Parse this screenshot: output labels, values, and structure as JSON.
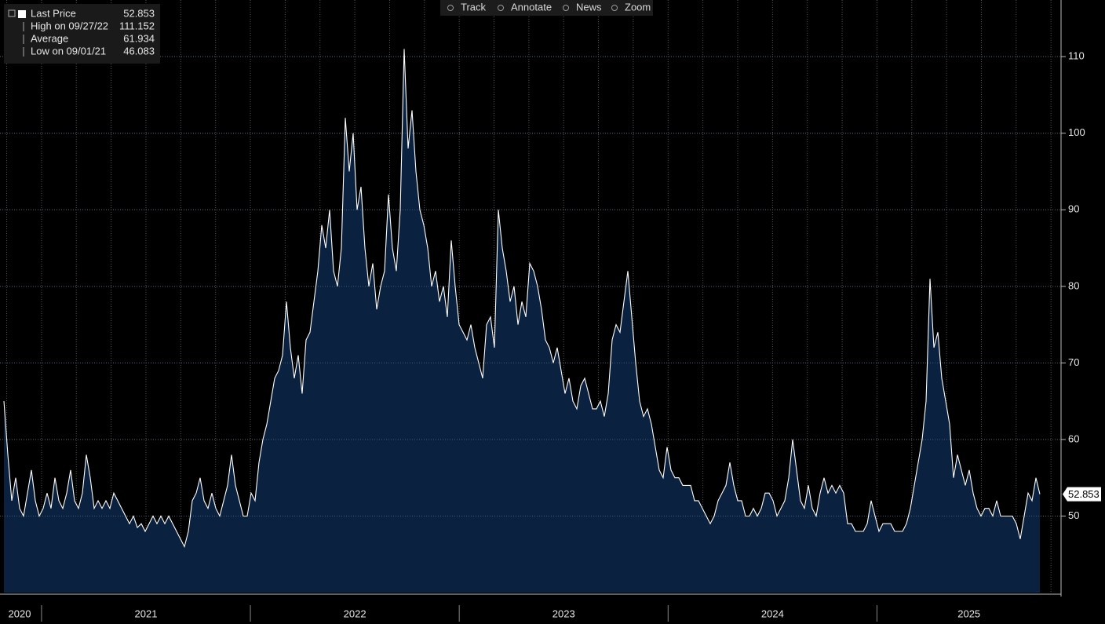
{
  "toolbar": [
    "Track",
    "Annotate",
    "News",
    "Zoom"
  ],
  "chart_data": {
    "type": "area",
    "legend": [
      {
        "label": "Last Price",
        "value": 52.853
      },
      {
        "label": "High on 09/27/22",
        "value": 111.152
      },
      {
        "label": "Average",
        "value": 61.934
      },
      {
        "label": "Low on 09/01/21",
        "value": 46.083
      }
    ],
    "series": [
      {
        "name": "Last Price",
        "color": "#ffffff",
        "fill": "#0a2140",
        "values": [
          65,
          58,
          52,
          55,
          51,
          50,
          53,
          56,
          52,
          50,
          51,
          53,
          51,
          55,
          52,
          51,
          53,
          56,
          52,
          51,
          53,
          58,
          55,
          51,
          52,
          51,
          52,
          51,
          53,
          52,
          51,
          50,
          49,
          50,
          48.5,
          49,
          48,
          49,
          50,
          49,
          50,
          49,
          50,
          49,
          48,
          47,
          46,
          48,
          52,
          53,
          55,
          52,
          51,
          53,
          51,
          50,
          52,
          54,
          58,
          54,
          52,
          50,
          50,
          53,
          52,
          57,
          60,
          62,
          65,
          68,
          69,
          71,
          78,
          72,
          68,
          71,
          66,
          73,
          74,
          78,
          82,
          88,
          85,
          90,
          82,
          80,
          85,
          102,
          95,
          100,
          90,
          93,
          85,
          80,
          83,
          77,
          80,
          82,
          92,
          85,
          82,
          90,
          111,
          98,
          103,
          95,
          90,
          88,
          85,
          80,
          82,
          78,
          80,
          76,
          86,
          80,
          75,
          74,
          73,
          75,
          72,
          70,
          68,
          75,
          76,
          72,
          90,
          85,
          82,
          78,
          80,
          75,
          78,
          76,
          83,
          82,
          80,
          77,
          73,
          72,
          70,
          72,
          69,
          66,
          68,
          65,
          64,
          67,
          68,
          66,
          64,
          64,
          65,
          63,
          66,
          73,
          75,
          74,
          78,
          82,
          76,
          70,
          65,
          63,
          64,
          62,
          59,
          56,
          55,
          59,
          56,
          55,
          55,
          54,
          54,
          54,
          52,
          52,
          51,
          50,
          49,
          50,
          52,
          53,
          54,
          57,
          54,
          52,
          52,
          50,
          50,
          51,
          50,
          51,
          53,
          53,
          52,
          50,
          51,
          52,
          55,
          60,
          56,
          52,
          51,
          54,
          51,
          50,
          53,
          55,
          53,
          54,
          53,
          54,
          53,
          49,
          49,
          48,
          48,
          48,
          49,
          52,
          50,
          48,
          49,
          49,
          49,
          48,
          48,
          48,
          49,
          51,
          54,
          57,
          60,
          65,
          81,
          72,
          74,
          68,
          65,
          62,
          55,
          58,
          56,
          54,
          56,
          53,
          51,
          50,
          51,
          51,
          50,
          52,
          50,
          50,
          50,
          50,
          49,
          47,
          50,
          53,
          52,
          55,
          52.853
        ]
      }
    ],
    "xlim": [
      2020.82,
      2025.78
    ],
    "xticks": [
      2021,
      2022,
      2023,
      2024,
      2025
    ],
    "x_labels": [
      "2020",
      "2021",
      "2022",
      "2023",
      "2024",
      "2025"
    ],
    "ylim": [
      40,
      117.4
    ],
    "yticks": [
      50,
      60,
      70,
      80,
      90,
      100,
      110
    ],
    "grid": true
  }
}
